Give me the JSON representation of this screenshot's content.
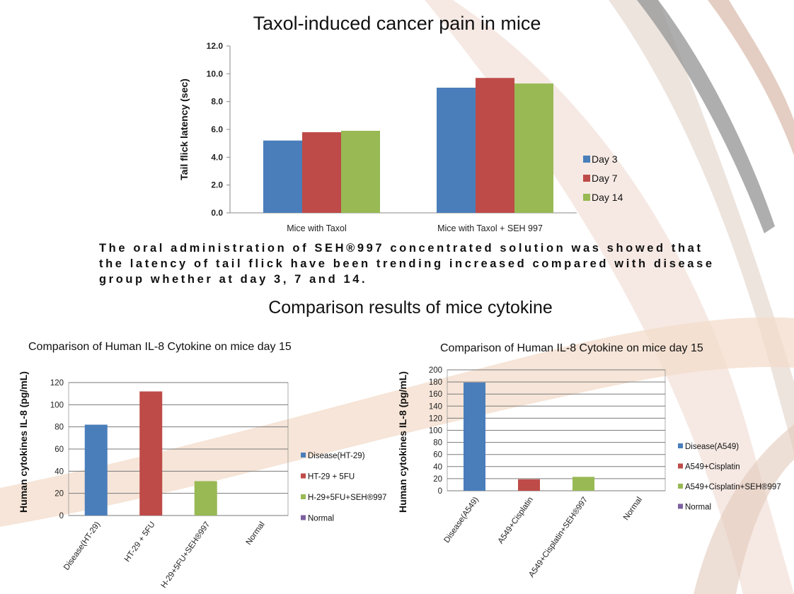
{
  "slide": {
    "title": "Taxol-induced cancer pain in mice",
    "description": "The oral administration of SEH®997 concentrated solution was showed that the latency of tail flick have been trending increased compared with disease group whether at day 3, 7 and 14.",
    "section_title": "Comparison results of mice cytokine"
  },
  "colors": {
    "blue": "#4a7ebb",
    "red": "#be4b48",
    "green": "#98b954",
    "purple": "#7d60a0"
  },
  "chart_data": [
    {
      "type": "bar",
      "title": "",
      "ylabel": "Tail flick latency (sec)",
      "xlabel": "",
      "categories": [
        "Mice with Taxol",
        "Mice with Taxol + SEH 997"
      ],
      "series": [
        {
          "name": "Day 3",
          "values": [
            5.2,
            9.0
          ]
        },
        {
          "name": "Day 7",
          "values": [
            5.8,
            9.7
          ]
        },
        {
          "name": "Day 14",
          "values": [
            5.9,
            9.3
          ]
        }
      ],
      "ylim": [
        0,
        12
      ],
      "yticks": [
        "0.0",
        "2.0",
        "4.0",
        "6.0",
        "8.0",
        "10.0",
        "12.0"
      ],
      "grid": false,
      "legend": "right"
    },
    {
      "type": "bar",
      "title": "Comparison of Human IL-8 Cytokine on mice day 15",
      "ylabel": "Human cytokines IL-8 (pg/mL)",
      "xlabel": "",
      "categories": [
        "Disease(HT-29)",
        "HT-29 + 5FU",
        "H-29+5FU+SEH®997",
        "Normal"
      ],
      "series": [
        {
          "name": "Disease(HT-29)",
          "values": [
            82,
            null,
            null,
            null
          ]
        },
        {
          "name": "HT-29 + 5FU",
          "values": [
            null,
            112,
            null,
            null
          ]
        },
        {
          "name": "H-29+5FU+SEH®997",
          "values": [
            null,
            null,
            31,
            null
          ]
        },
        {
          "name": "Normal",
          "values": [
            null,
            null,
            null,
            0
          ]
        }
      ],
      "ylim": [
        0,
        120
      ],
      "yticks": [
        "0",
        "20",
        "40",
        "60",
        "80",
        "100",
        "120"
      ],
      "grid": true,
      "legend": "right"
    },
    {
      "type": "bar",
      "title": "Comparison of Human IL-8 Cytokine on mice day 15",
      "ylabel": "Human cytokines IL-8 (pg/mL)",
      "xlabel": "",
      "categories": [
        "Disease(A549)",
        "A549+Cisplatin",
        "A549+Cisplatin+SEH®997",
        "Normal"
      ],
      "series": [
        {
          "name": "Disease(A549)",
          "values": [
            179,
            null,
            null,
            null
          ]
        },
        {
          "name": "A549+Cisplatin",
          "values": [
            null,
            19,
            null,
            null
          ]
        },
        {
          "name": "A549+Cisplatin+SEH®997",
          "values": [
            null,
            null,
            23,
            null
          ]
        },
        {
          "name": "Normal",
          "values": [
            null,
            null,
            null,
            0
          ]
        }
      ],
      "ylim": [
        0,
        200
      ],
      "yticks": [
        "0",
        "20",
        "40",
        "60",
        "80",
        "100",
        "120",
        "140",
        "160",
        "180",
        "200"
      ],
      "grid": true,
      "legend": "right"
    }
  ]
}
